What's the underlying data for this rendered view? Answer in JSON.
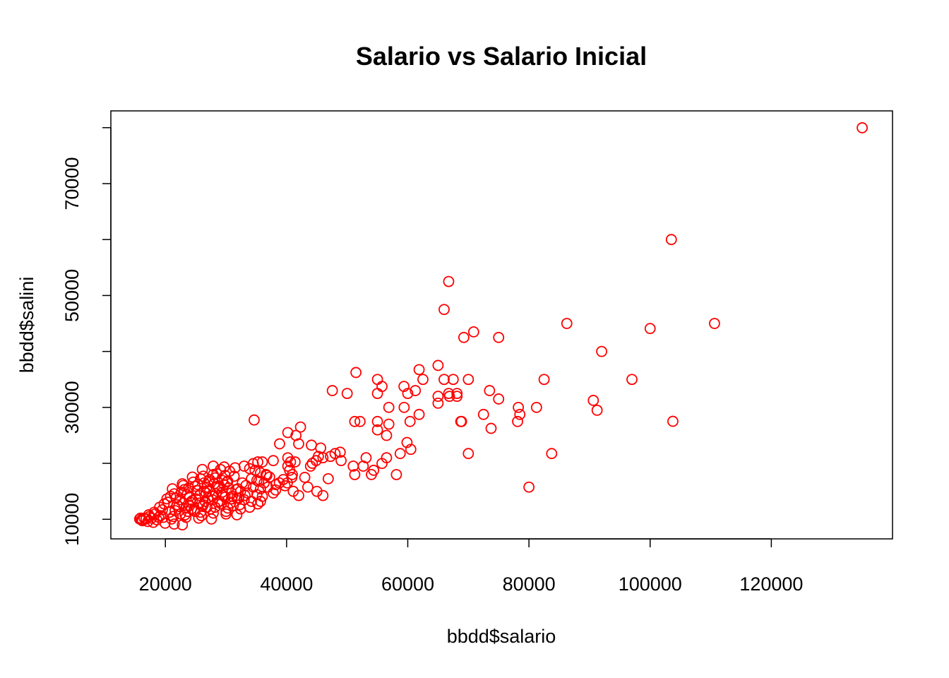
{
  "chart_data": {
    "type": "scatter",
    "title": "Salario vs Salario Inicial",
    "xlabel": "bbdd$salario",
    "ylabel": "bbdd$salini",
    "xlim": [
      11000,
      140000
    ],
    "ylim": [
      6500,
      83000
    ],
    "xticks": [
      20000,
      40000,
      60000,
      80000,
      100000,
      120000
    ],
    "yticks": [
      10000,
      30000,
      50000,
      70000
    ],
    "ytick_minor": [
      20000,
      40000,
      60000,
      80000
    ],
    "marker": "open-circle",
    "color": "#ff0000",
    "grid": false,
    "points": [
      [
        135000,
        79980
      ],
      [
        103500,
        60000
      ],
      [
        66750,
        52500
      ],
      [
        66000,
        47500
      ],
      [
        70875,
        43500
      ],
      [
        69250,
        42500
      ],
      [
        75000,
        42500
      ],
      [
        86250,
        45000
      ],
      [
        100000,
        44100
      ],
      [
        110625,
        45000
      ],
      [
        92000,
        40000
      ],
      [
        97000,
        35000
      ],
      [
        91250,
        29490
      ],
      [
        90625,
        31250
      ],
      [
        103750,
        27510
      ],
      [
        82500,
        35000
      ],
      [
        81250,
        30000
      ],
      [
        78250,
        30000
      ],
      [
        78500,
        28740
      ],
      [
        78125,
        27480
      ],
      [
        80000,
        15750
      ],
      [
        83750,
        21750
      ],
      [
        73500,
        33000
      ],
      [
        75000,
        31500
      ],
      [
        72500,
        28740
      ],
      [
        73750,
        26250
      ],
      [
        70000,
        35000
      ],
      [
        70000,
        21750
      ],
      [
        68750,
        27480
      ],
      [
        68875,
        27480
      ],
      [
        68125,
        32490
      ],
      [
        67500,
        35000
      ],
      [
        66750,
        32490
      ],
      [
        66875,
        31980
      ],
      [
        66000,
        35000
      ],
      [
        65000,
        37500
      ],
      [
        65000,
        31980
      ],
      [
        65000,
        30750
      ],
      [
        68125,
        31980
      ],
      [
        61875,
        36750
      ],
      [
        62500,
        35000
      ],
      [
        61250,
        33000
      ],
      [
        61875,
        28740
      ],
      [
        59375,
        33750
      ],
      [
        60000,
        32490
      ],
      [
        59400,
        30000
      ],
      [
        60375,
        27480
      ],
      [
        60500,
        22500
      ],
      [
        59875,
        23730
      ],
      [
        58750,
        21750
      ],
      [
        58125,
        17990
      ],
      [
        55750,
        33750
      ],
      [
        55000,
        35000
      ],
      [
        55000,
        32490
      ],
      [
        56875,
        30000
      ],
      [
        55000,
        27480
      ],
      [
        56875,
        27000
      ],
      [
        55000,
        25980
      ],
      [
        56500,
        24990
      ],
      [
        56500,
        21000
      ],
      [
        55750,
        19980
      ],
      [
        54375,
        18750
      ],
      [
        54000,
        18000
      ],
      [
        51450,
        36240
      ],
      [
        50000,
        32490
      ],
      [
        47550,
        33000
      ],
      [
        51250,
        27480
      ],
      [
        52125,
        27480
      ],
      [
        51000,
        19500
      ],
      [
        51250,
        17990
      ],
      [
        53125,
        21000
      ],
      [
        52650,
        19500
      ],
      [
        49000,
        20490
      ],
      [
        48850,
        21990
      ],
      [
        48000,
        21750
      ],
      [
        47250,
        21240
      ],
      [
        46000,
        21000
      ],
      [
        45250,
        21240
      ],
      [
        44875,
        20490
      ],
      [
        44250,
        20000
      ],
      [
        43950,
        19500
      ],
      [
        45000,
        14990
      ],
      [
        46000,
        14250
      ],
      [
        46875,
        17250
      ],
      [
        43000,
        17490
      ],
      [
        43500,
        15750
      ],
      [
        42300,
        26490
      ],
      [
        41550,
        24990
      ],
      [
        40200,
        25500
      ],
      [
        38850,
        23490
      ],
      [
        42000,
        23490
      ],
      [
        44100,
        23250
      ],
      [
        45625,
        22740
      ],
      [
        40200,
        20990
      ],
      [
        41400,
        20250
      ],
      [
        40650,
        20250
      ],
      [
        40200,
        19500
      ],
      [
        40500,
        18750
      ],
      [
        40875,
        17490
      ],
      [
        40125,
        16500
      ],
      [
        39750,
        15990
      ],
      [
        38800,
        16500
      ],
      [
        38200,
        15240
      ],
      [
        41100,
        15000
      ],
      [
        42000,
        14250
      ],
      [
        37800,
        20490
      ],
      [
        36000,
        20250
      ],
      [
        35250,
        20250
      ],
      [
        34500,
        19950
      ],
      [
        33000,
        19500
      ],
      [
        33900,
        19050
      ],
      [
        34800,
        18750
      ],
      [
        35700,
        18300
      ],
      [
        36600,
        18000
      ],
      [
        37200,
        17550
      ],
      [
        34200,
        17250
      ],
      [
        35400,
        16800
      ],
      [
        36300,
        16500
      ],
      [
        33300,
        16050
      ],
      [
        34500,
        15750
      ],
      [
        35700,
        15450
      ],
      [
        32400,
        15000
      ],
      [
        33600,
        14700
      ],
      [
        35100,
        14400
      ],
      [
        36000,
        14100
      ],
      [
        31800,
        13800
      ],
      [
        33000,
        13500
      ],
      [
        34200,
        13200
      ],
      [
        35250,
        12750
      ],
      [
        31200,
        12450
      ],
      [
        33900,
        12150
      ],
      [
        34650,
        27750
      ],
      [
        29700,
        19350
      ],
      [
        31500,
        19200
      ],
      [
        27900,
        19500
      ],
      [
        29100,
        18900
      ],
      [
        30600,
        18600
      ],
      [
        26100,
        18900
      ],
      [
        28500,
        18150
      ],
      [
        31350,
        17700
      ],
      [
        25800,
        17250
      ],
      [
        27300,
        17100
      ],
      [
        29400,
        16950
      ],
      [
        30300,
        16800
      ],
      [
        24600,
        16650
      ],
      [
        26400,
        16500
      ],
      [
        28050,
        16350
      ],
      [
        29700,
        16200
      ],
      [
        22950,
        16050
      ],
      [
        24900,
        15900
      ],
      [
        26850,
        15750
      ],
      [
        28800,
        15600
      ],
      [
        31950,
        15450
      ],
      [
        23100,
        15300
      ],
      [
        25200,
        15150
      ],
      [
        27300,
        15000
      ],
      [
        29400,
        14850
      ],
      [
        30900,
        14700
      ],
      [
        21450,
        14550
      ],
      [
        23550,
        14400
      ],
      [
        25650,
        14250
      ],
      [
        27750,
        14100
      ],
      [
        29850,
        13950
      ],
      [
        32100,
        13800
      ],
      [
        20250,
        13650
      ],
      [
        22350,
        13500
      ],
      [
        24450,
        13350
      ],
      [
        26550,
        13200
      ],
      [
        28650,
        13050
      ],
      [
        30750,
        12900
      ],
      [
        19800,
        12750
      ],
      [
        21900,
        12600
      ],
      [
        24000,
        12450
      ],
      [
        26100,
        12300
      ],
      [
        28200,
        12150
      ],
      [
        30300,
        12000
      ],
      [
        32400,
        11850
      ],
      [
        19500,
        11700
      ],
      [
        21600,
        11550
      ],
      [
        23700,
        11400
      ],
      [
        25800,
        11250
      ],
      [
        27900,
        11100
      ],
      [
        30000,
        10950
      ],
      [
        31800,
        10800
      ],
      [
        19200,
        10650
      ],
      [
        21300,
        10500
      ],
      [
        23400,
        10350
      ],
      [
        25500,
        10200
      ],
      [
        27600,
        10050
      ],
      [
        18300,
        10950
      ],
      [
        17400,
        10500
      ],
      [
        18900,
        10350
      ],
      [
        16500,
        10200
      ],
      [
        15750,
        10050
      ],
      [
        16200,
        9750
      ],
      [
        17100,
        9600
      ],
      [
        18000,
        9450
      ],
      [
        19950,
        9300
      ],
      [
        21450,
        9150
      ],
      [
        22800,
        9000
      ],
      [
        23250,
        10800
      ],
      [
        24750,
        11700
      ],
      [
        26250,
        12600
      ],
      [
        27000,
        13800
      ],
      [
        22650,
        14850
      ],
      [
        25350,
        16200
      ],
      [
        28200,
        17400
      ],
      [
        26700,
        14700
      ],
      [
        24150,
        13050
      ],
      [
        22200,
        12300
      ],
      [
        20700,
        11250
      ],
      [
        19650,
        10350
      ],
      [
        18600,
        9900
      ],
      [
        16800,
        10050
      ],
      [
        17700,
        10200
      ],
      [
        20850,
        14100
      ],
      [
        23850,
        15600
      ],
      [
        27150,
        16800
      ],
      [
        29850,
        17850
      ],
      [
        25050,
        13650
      ],
      [
        28350,
        14550
      ],
      [
        30450,
        15600
      ],
      [
        32700,
        16500
      ],
      [
        31050,
        14100
      ],
      [
        29250,
        12750
      ],
      [
        27450,
        11850
      ],
      [
        25950,
        10650
      ],
      [
        24300,
        11850
      ],
      [
        22950,
        12900
      ],
      [
        21750,
        13800
      ],
      [
        20400,
        13050
      ],
      [
        19050,
        12150
      ],
      [
        18150,
        11250
      ],
      [
        17250,
        10800
      ],
      [
        16050,
        9900
      ],
      [
        15900,
        10200
      ],
      [
        24000,
        14100
      ],
      [
        26400,
        15000
      ],
      [
        28650,
        15900
      ],
      [
        30150,
        16650
      ],
      [
        23400,
        12000
      ],
      [
        25650,
        12900
      ],
      [
        27750,
        13500
      ],
      [
        29550,
        14250
      ],
      [
        31650,
        15300
      ],
      [
        21000,
        10050
      ],
      [
        22500,
        10950
      ],
      [
        24900,
        11400
      ],
      [
        26850,
        12150
      ],
      [
        28950,
        13200
      ],
      [
        30900,
        13650
      ],
      [
        33150,
        14250
      ],
      [
        27900,
        18000
      ],
      [
        26250,
        17700
      ],
      [
        24450,
        17550
      ],
      [
        22800,
        16350
      ],
      [
        21150,
        15450
      ],
      [
        30000,
        11400
      ],
      [
        32250,
        12600
      ],
      [
        35700,
        13200
      ],
      [
        36900,
        15750
      ],
      [
        37800,
        14700
      ],
      [
        38250,
        16200
      ],
      [
        39450,
        17100
      ],
      [
        40950,
        18000
      ],
      [
        36750,
        17850
      ],
      [
        35100,
        16950
      ]
    ]
  }
}
